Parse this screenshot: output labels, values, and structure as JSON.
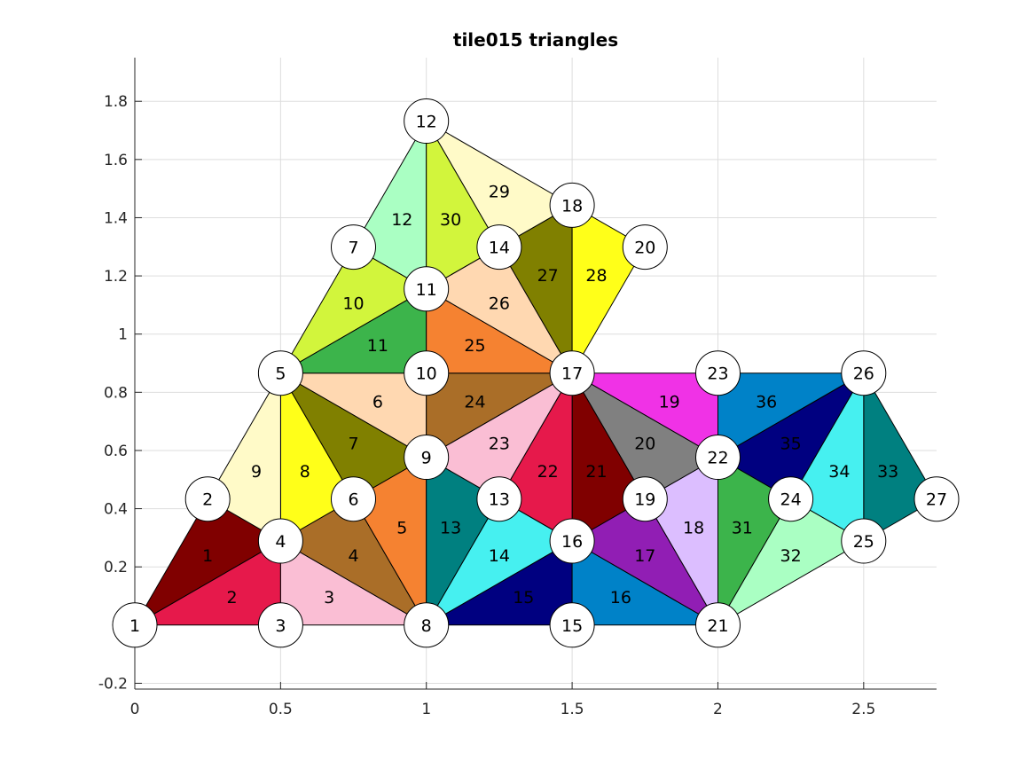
{
  "chart_data": {
    "type": "diagram",
    "title": "tile015 triangles",
    "xlim": [
      0,
      2.75
    ],
    "ylim": [
      -0.22,
      1.95
    ],
    "xticks": [
      0,
      0.5,
      1,
      1.5,
      2,
      2.5
    ],
    "xtick_labels": [
      "0",
      "0.5",
      "1",
      "1.5",
      "2",
      "2.5"
    ],
    "yticks": [
      -0.2,
      0.2,
      0.4,
      0.6,
      0.8,
      1,
      1.2,
      1.4,
      1.6,
      1.8
    ],
    "ytick_labels": [
      "-0.2",
      "0.2",
      "0.4",
      "0.6",
      "0.8",
      "1",
      "1.2",
      "1.4",
      "1.6",
      "1.8"
    ],
    "grid": true,
    "nodes": [
      {
        "id": "1",
        "x": 0,
        "y": 0
      },
      {
        "id": "2",
        "x": 0.25,
        "y": 0.433
      },
      {
        "id": "3",
        "x": 0.5,
        "y": 0
      },
      {
        "id": "4",
        "x": 0.5,
        "y": 0.289
      },
      {
        "id": "5",
        "x": 0.5,
        "y": 0.866
      },
      {
        "id": "6",
        "x": 0.75,
        "y": 0.433
      },
      {
        "id": "7",
        "x": 0.75,
        "y": 1.299
      },
      {
        "id": "8",
        "x": 1,
        "y": 0
      },
      {
        "id": "9",
        "x": 1,
        "y": 0.577
      },
      {
        "id": "10",
        "x": 1,
        "y": 0.866
      },
      {
        "id": "11",
        "x": 1,
        "y": 1.155
      },
      {
        "id": "12",
        "x": 1,
        "y": 1.732
      },
      {
        "id": "13",
        "x": 1.25,
        "y": 0.433
      },
      {
        "id": "14",
        "x": 1.25,
        "y": 1.299
      },
      {
        "id": "15",
        "x": 1.5,
        "y": 0
      },
      {
        "id": "16",
        "x": 1.5,
        "y": 0.289
      },
      {
        "id": "17",
        "x": 1.5,
        "y": 0.866
      },
      {
        "id": "18",
        "x": 1.5,
        "y": 1.443
      },
      {
        "id": "19",
        "x": 1.75,
        "y": 0.433
      },
      {
        "id": "20",
        "x": 1.75,
        "y": 1.299
      },
      {
        "id": "21",
        "x": 2,
        "y": 0
      },
      {
        "id": "22",
        "x": 2,
        "y": 0.577
      },
      {
        "id": "23",
        "x": 2,
        "y": 0.866
      },
      {
        "id": "24",
        "x": 2.25,
        "y": 0.433
      },
      {
        "id": "25",
        "x": 2.5,
        "y": 0.289
      },
      {
        "id": "26",
        "x": 2.5,
        "y": 0.866
      },
      {
        "id": "27",
        "x": 2.75,
        "y": 0.433
      }
    ],
    "triangles": [
      {
        "id": "1",
        "v": [
          "1",
          "4",
          "2"
        ],
        "color": "#800000"
      },
      {
        "id": "2",
        "v": [
          "1",
          "3",
          "4"
        ],
        "color": "#e6194b"
      },
      {
        "id": "3",
        "v": [
          "3",
          "8",
          "4"
        ],
        "color": "#fabed4"
      },
      {
        "id": "4",
        "v": [
          "4",
          "8",
          "6"
        ],
        "color": "#aa6e28"
      },
      {
        "id": "5",
        "v": [
          "6",
          "8",
          "9"
        ],
        "color": "#f58231"
      },
      {
        "id": "6",
        "v": [
          "5",
          "9",
          "10"
        ],
        "color": "#ffd8b1"
      },
      {
        "id": "7",
        "v": [
          "5",
          "6",
          "9"
        ],
        "color": "#808000"
      },
      {
        "id": "8",
        "v": [
          "4",
          "6",
          "5"
        ],
        "color": "#ffff19"
      },
      {
        "id": "9",
        "v": [
          "2",
          "4",
          "5"
        ],
        "color": "#fffac8"
      },
      {
        "id": "10",
        "v": [
          "5",
          "11",
          "7"
        ],
        "color": "#d2f53c"
      },
      {
        "id": "11",
        "v": [
          "5",
          "10",
          "11"
        ],
        "color": "#3cb44b"
      },
      {
        "id": "12",
        "v": [
          "7",
          "11",
          "12"
        ],
        "color": "#aaffc3"
      },
      {
        "id": "13",
        "v": [
          "8",
          "13",
          "9"
        ],
        "color": "#008080"
      },
      {
        "id": "14",
        "v": [
          "8",
          "16",
          "13"
        ],
        "color": "#46f0f0"
      },
      {
        "id": "15",
        "v": [
          "8",
          "15",
          "16"
        ],
        "color": "#000080"
      },
      {
        "id": "16",
        "v": [
          "15",
          "21",
          "16"
        ],
        "color": "#0082c8"
      },
      {
        "id": "17",
        "v": [
          "16",
          "21",
          "19"
        ],
        "color": "#911eb4"
      },
      {
        "id": "18",
        "v": [
          "19",
          "21",
          "22"
        ],
        "color": "#dcbeff"
      },
      {
        "id": "19",
        "v": [
          "17",
          "22",
          "23"
        ],
        "color": "#f032e6"
      },
      {
        "id": "20",
        "v": [
          "17",
          "19",
          "22"
        ],
        "color": "#808080"
      },
      {
        "id": "21",
        "v": [
          "16",
          "19",
          "17"
        ],
        "color": "#800000"
      },
      {
        "id": "22",
        "v": [
          "13",
          "16",
          "17"
        ],
        "color": "#e6194b"
      },
      {
        "id": "23",
        "v": [
          "9",
          "13",
          "17"
        ],
        "color": "#fabed4"
      },
      {
        "id": "24",
        "v": [
          "9",
          "17",
          "10"
        ],
        "color": "#aa6e28"
      },
      {
        "id": "25",
        "v": [
          "10",
          "17",
          "11"
        ],
        "color": "#f58231"
      },
      {
        "id": "26",
        "v": [
          "11",
          "17",
          "14"
        ],
        "color": "#ffd8b1"
      },
      {
        "id": "27",
        "v": [
          "14",
          "17",
          "18"
        ],
        "color": "#808000"
      },
      {
        "id": "28",
        "v": [
          "17",
          "20",
          "18"
        ],
        "color": "#ffff19"
      },
      {
        "id": "29",
        "v": [
          "12",
          "14",
          "18"
        ],
        "color": "#fffac8"
      },
      {
        "id": "30",
        "v": [
          "11",
          "14",
          "12"
        ],
        "color": "#d2f53c"
      },
      {
        "id": "31",
        "v": [
          "21",
          "24",
          "22"
        ],
        "color": "#3cb44b"
      },
      {
        "id": "32",
        "v": [
          "21",
          "25",
          "24"
        ],
        "color": "#aaffc3"
      },
      {
        "id": "33",
        "v": [
          "25",
          "27",
          "26"
        ],
        "color": "#008080"
      },
      {
        "id": "34",
        "v": [
          "24",
          "25",
          "26"
        ],
        "color": "#46f0f0"
      },
      {
        "id": "35",
        "v": [
          "22",
          "24",
          "26"
        ],
        "color": "#000080"
      },
      {
        "id": "36",
        "v": [
          "22",
          "26",
          "23"
        ],
        "color": "#0082c8"
      }
    ]
  }
}
